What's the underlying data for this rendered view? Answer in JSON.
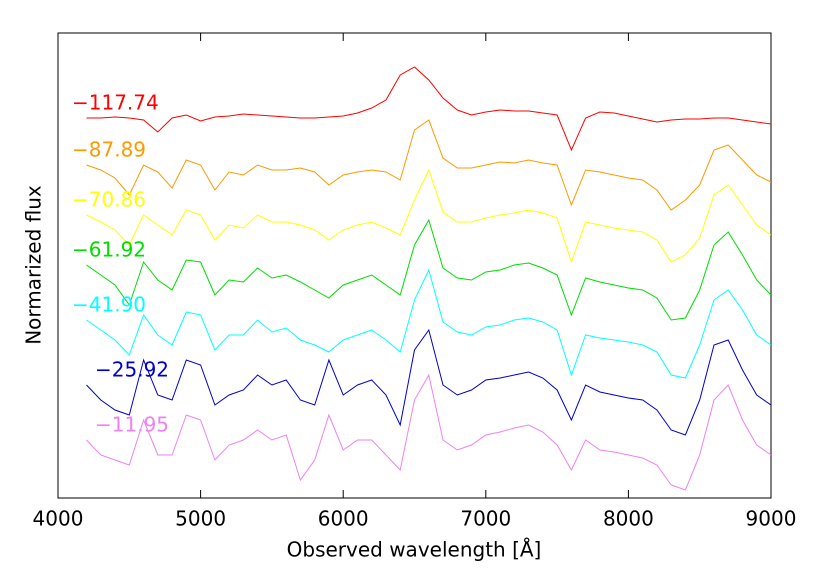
{
  "chart_data": {
    "type": "line",
    "xlabel": "Observed wavelength [Å]",
    "ylabel": "Normarized flux",
    "xlim": [
      4000,
      9000
    ],
    "xticks": [
      4000,
      5000,
      6000,
      7000,
      8000,
      9000
    ],
    "ylim": [
      0,
      465
    ],
    "x": [
      4200,
      4300,
      4400,
      4500,
      4600,
      4700,
      4800,
      4900,
      5000,
      5100,
      5200,
      5300,
      5400,
      5500,
      5600,
      5700,
      5800,
      5900,
      6000,
      6100,
      6200,
      6300,
      6400,
      6500,
      6600,
      6700,
      6800,
      6900,
      7000,
      7100,
      7200,
      7300,
      7400,
      7500,
      7600,
      7700,
      7800,
      7900,
      8000,
      8100,
      8200,
      8300,
      8400,
      8500,
      8600,
      8700,
      8800,
      8900,
      9000
    ],
    "series": [
      {
        "name": "−117.74",
        "color": "#ff0000",
        "values": [
          380,
          380,
          381,
          380,
          378,
          366,
          380,
          383,
          377,
          381,
          382,
          384,
          383,
          382,
          381,
          380,
          380,
          381,
          382,
          385,
          390,
          398,
          423,
          431,
          418,
          400,
          388,
          383,
          386,
          388,
          387,
          387,
          385,
          383,
          348,
          380,
          386,
          385,
          382,
          379,
          376,
          378,
          379,
          379,
          380,
          380,
          378,
          376,
          374
        ]
      },
      {
        "name": "−87.89",
        "color": "#ff9900",
        "values": [
          333,
          328,
          320,
          303,
          333,
          326,
          310,
          338,
          333,
          308,
          326,
          323,
          333,
          328,
          328,
          330,
          326,
          313,
          323,
          326,
          328,
          326,
          318,
          368,
          378,
          340,
          330,
          330,
          333,
          336,
          335,
          338,
          335,
          333,
          293,
          328,
          326,
          323,
          320,
          318,
          308,
          288,
          298,
          313,
          348,
          353,
          338,
          323,
          316
        ]
      },
      {
        "name": "−70.86",
        "color": "#ffff00",
        "values": [
          283,
          276,
          268,
          253,
          283,
          273,
          263,
          288,
          283,
          258,
          273,
          270,
          283,
          276,
          276,
          273,
          268,
          258,
          268,
          273,
          276,
          270,
          263,
          298,
          328,
          286,
          276,
          276,
          280,
          283,
          285,
          288,
          285,
          280,
          236,
          276,
          273,
          270,
          268,
          266,
          258,
          236,
          243,
          260,
          303,
          313,
          293,
          273,
          263
        ]
      },
      {
        "name": "−61.92",
        "color": "#00dd00",
        "values": [
          233,
          223,
          213,
          193,
          236,
          218,
          208,
          238,
          236,
          203,
          218,
          216,
          230,
          220,
          223,
          216,
          208,
          200,
          213,
          218,
          223,
          213,
          203,
          253,
          278,
          230,
          220,
          218,
          226,
          228,
          233,
          235,
          230,
          223,
          183,
          220,
          216,
          213,
          210,
          208,
          200,
          178,
          180,
          208,
          253,
          266,
          243,
          218,
          203
        ]
      },
      {
        "name": "−41.90",
        "color": "#00ffff",
        "values": [
          178,
          168,
          158,
          143,
          183,
          163,
          153,
          186,
          183,
          148,
          163,
          163,
          178,
          166,
          170,
          158,
          153,
          146,
          158,
          163,
          168,
          158,
          146,
          198,
          228,
          176,
          166,
          163,
          171,
          173,
          178,
          180,
          176,
          168,
          123,
          163,
          160,
          158,
          156,
          153,
          146,
          123,
          120,
          153,
          198,
          208,
          188,
          163,
          153
        ]
      },
      {
        "name": "−25.92",
        "color": "#0000cc",
        "values": [
          113,
          98,
          88,
          83,
          138,
          103,
          98,
          138,
          133,
          93,
          103,
          108,
          123,
          113,
          118,
          98,
          93,
          138,
          103,
          113,
          118,
          103,
          73,
          148,
          168,
          113,
          103,
          108,
          118,
          120,
          123,
          126,
          120,
          108,
          78,
          113,
          106,
          103,
          100,
          98,
          88,
          68,
          63,
          98,
          153,
          158,
          128,
          103,
          93
        ]
      },
      {
        "name": "−11.95",
        "color": "#ee82ee",
        "values": [
          58,
          43,
          38,
          33,
          78,
          43,
          43,
          83,
          78,
          38,
          53,
          58,
          68,
          58,
          63,
          18,
          38,
          83,
          48,
          58,
          58,
          43,
          28,
          98,
          123,
          58,
          48,
          53,
          63,
          66,
          70,
          73,
          66,
          53,
          28,
          58,
          48,
          46,
          43,
          40,
          33,
          13,
          8,
          43,
          98,
          113,
          78,
          53,
          43
        ]
      }
    ]
  }
}
